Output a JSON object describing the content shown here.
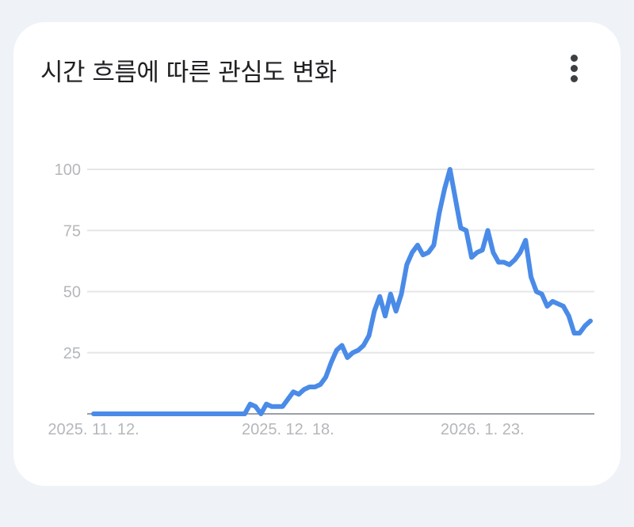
{
  "header": {
    "title": "시간 흐름에 따른 관심도 변화",
    "menu_icon": "more-vert-icon"
  },
  "colors": {
    "line": "#4a8be8",
    "grid": "#e4e6e8",
    "axis": "#9aa0a6",
    "tick_label": "#b4b7bb",
    "card": "#ffffff",
    "background": "#eff2f7"
  },
  "chart_data": {
    "type": "line",
    "title": "",
    "xlabel": "",
    "ylabel": "",
    "ylim": [
      0,
      100
    ],
    "yticks": [
      25,
      50,
      75,
      100
    ],
    "xtick_labels": [
      {
        "label": "2025. 11. 12.",
        "index": 0
      },
      {
        "label": "2025. 12. 18.",
        "index": 36
      },
      {
        "label": "2026. 1. 23.",
        "index": 72
      }
    ],
    "grid": true,
    "legend": "none",
    "series": [
      {
        "values": [
          0,
          0,
          0,
          0,
          0,
          0,
          0,
          0,
          0,
          0,
          0,
          0,
          0,
          0,
          0,
          0,
          0,
          0,
          0,
          0,
          0,
          0,
          0,
          0,
          0,
          0,
          0,
          0,
          0,
          4,
          3,
          0,
          4,
          3,
          3,
          3,
          6,
          9,
          8,
          10,
          11,
          11,
          12,
          15,
          21,
          26,
          28,
          23,
          25,
          26,
          28,
          32,
          42,
          48,
          40,
          49,
          42,
          49,
          61,
          66,
          69,
          65,
          66,
          69,
          82,
          92,
          100,
          88,
          76,
          75,
          64,
          66,
          67,
          75,
          66,
          62,
          62,
          61,
          63,
          66,
          71,
          56,
          50,
          49,
          44,
          46,
          45,
          44,
          40,
          33,
          33,
          36,
          38
        ]
      }
    ]
  }
}
